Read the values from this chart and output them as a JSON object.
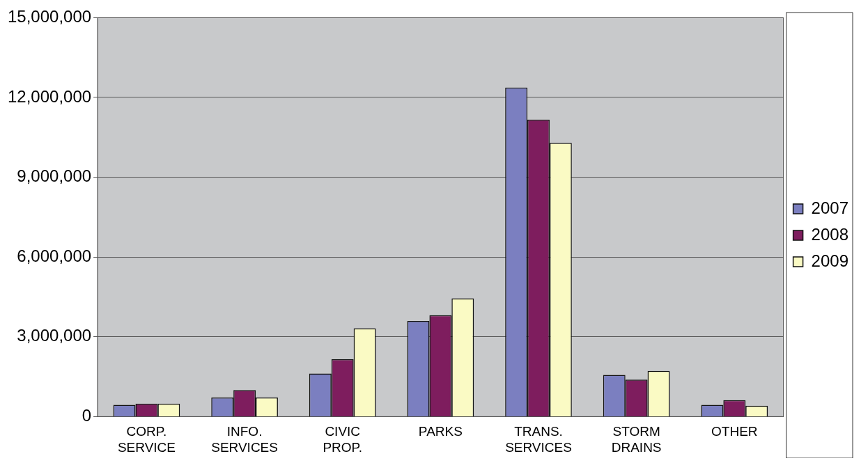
{
  "chart_data": {
    "type": "bar",
    "categories": [
      "CORP. SERVICE",
      "INFO. SERVICES",
      "CIVIC PROP.",
      "PARKS",
      "TRANS. SERVICES",
      "STORM DRAINS",
      "OTHER"
    ],
    "series": [
      {
        "name": "2007",
        "color": "#7b7fc0",
        "values": [
          440000,
          720000,
          1620000,
          3600000,
          12370000,
          1570000,
          440000
        ]
      },
      {
        "name": "2008",
        "color": "#7e1d5e",
        "values": [
          490000,
          1000000,
          2160000,
          3810000,
          11170000,
          1390000,
          620000
        ]
      },
      {
        "name": "2009",
        "color": "#fafac4",
        "values": [
          490000,
          720000,
          3320000,
          4450000,
          10290000,
          1720000,
          410000
        ]
      }
    ],
    "ylim": [
      0,
      15000000
    ],
    "yticks": [
      {
        "value": 0,
        "label": "0"
      },
      {
        "value": 3000000,
        "label": "3,000,000"
      },
      {
        "value": 6000000,
        "label": "6,000,000"
      },
      {
        "value": 9000000,
        "label": "9,000,000"
      },
      {
        "value": 12000000,
        "label": "12,000,000"
      },
      {
        "value": 15000000,
        "label": "15,000,000"
      }
    ],
    "grid": "y",
    "legend": "right"
  }
}
